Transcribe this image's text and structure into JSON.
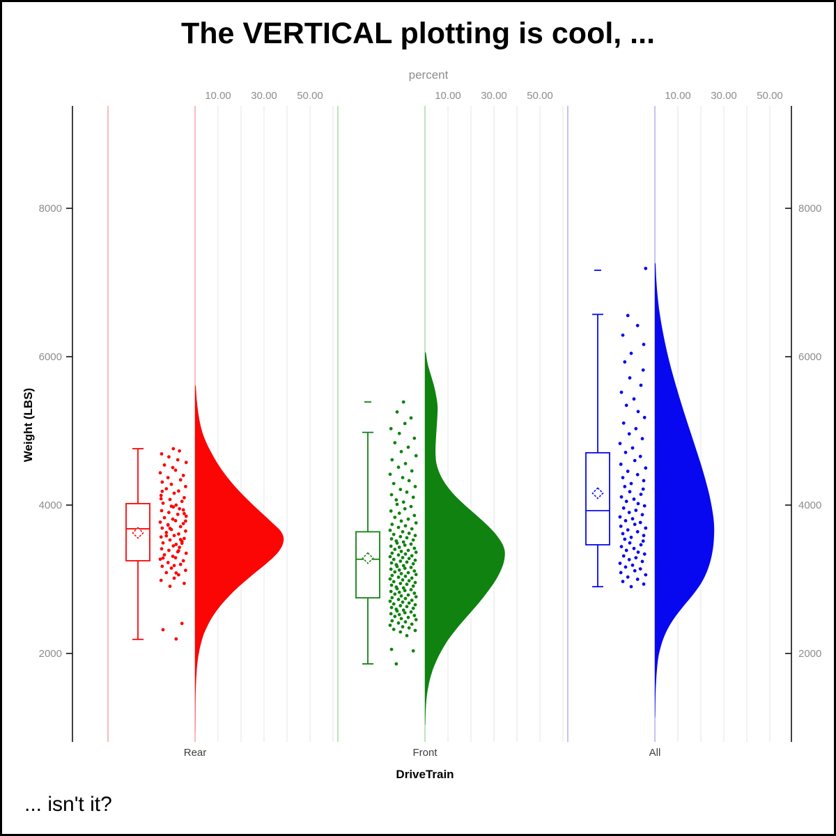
{
  "title": "The VERTICAL plotting is cool, ...",
  "footnote": "... isn't it?",
  "chart_data": {
    "type": "raincloud (half-violin + box-plot + jittered points), vertical",
    "title": "The VERTICAL plotting is cool, ...",
    "footnote": "... isn't it?",
    "x_axis": {
      "label": "DriveTrain",
      "categories": [
        "Rear",
        "Front",
        "All"
      ]
    },
    "y_axis": {
      "label": "Weight (LBS)",
      "ticks": [
        2000,
        4000,
        6000,
        8000
      ],
      "range": [
        800,
        9400
      ],
      "mirrored_right": true,
      "tick_color": "#8c8c8c"
    },
    "x2_axis": {
      "label": "percent",
      "tick_values": [
        10,
        30,
        50
      ],
      "tick_labels": [
        "10.00",
        "30.00",
        "50.00"
      ],
      "gridline_values": [
        10,
        20,
        30,
        40,
        50,
        60
      ],
      "per_category": true
    },
    "style": {
      "grid_color": "#efefef",
      "axis_color": "#000000",
      "category_label_color": "#3d3d3d",
      "background": "#ffffff"
    },
    "groups": [
      {
        "category": "Rear",
        "color": "#fb0505",
        "light_color": "#f5abab",
        "box": {
          "whisker_low": 2190,
          "q1": 3250,
          "median": 3680,
          "q3": 4020,
          "whisker_high": 4760,
          "mean": 3625
        },
        "outliers": [],
        "violin_profile_weight_pct": [
          [
            5600,
            0.3
          ],
          [
            5400,
            0.8
          ],
          [
            5200,
            1.6
          ],
          [
            5000,
            3.0
          ],
          [
            4850,
            4.8
          ],
          [
            4700,
            7.2
          ],
          [
            4550,
            10.0
          ],
          [
            4400,
            13.4
          ],
          [
            4250,
            17.4
          ],
          [
            4100,
            22.0
          ],
          [
            3950,
            27.0
          ],
          [
            3820,
            31.6
          ],
          [
            3720,
            35.0
          ],
          [
            3650,
            37.2
          ],
          [
            3560,
            38.5
          ],
          [
            3460,
            38.0
          ],
          [
            3360,
            36.0
          ],
          [
            3260,
            32.8
          ],
          [
            3160,
            29.0
          ],
          [
            3060,
            25.0
          ],
          [
            2960,
            21.2
          ],
          [
            2860,
            17.6
          ],
          [
            2760,
            14.4
          ],
          [
            2660,
            11.5
          ],
          [
            2560,
            9.0
          ],
          [
            2460,
            6.9
          ],
          [
            2360,
            5.2
          ],
          [
            2260,
            3.8
          ],
          [
            2160,
            2.8
          ],
          [
            2060,
            2.0
          ],
          [
            1940,
            1.3
          ],
          [
            1800,
            0.8
          ],
          [
            1650,
            0.5
          ],
          [
            1450,
            0.25
          ],
          [
            1200,
            0.12
          ],
          [
            950,
            0.06
          ]
        ],
        "jitter_cycle": [
          62,
          15,
          83,
          40,
          91,
          8,
          55,
          71,
          27,
          96,
          45,
          12,
          78,
          33,
          88,
          5,
          60,
          50,
          20,
          98,
          68,
          36,
          10,
          74,
          52
        ],
        "point_weights": [
          2195,
          2320,
          2405,
          2905,
          2945,
          2985,
          3015,
          3060,
          3090,
          3120,
          3150,
          3175,
          3200,
          3225,
          3250,
          3270,
          3290,
          3310,
          3330,
          3350,
          3370,
          3390,
          3410,
          3430,
          3450,
          3470,
          3490,
          3510,
          3530,
          3550,
          3570,
          3590,
          3610,
          3630,
          3650,
          3670,
          3690,
          3710,
          3730,
          3750,
          3770,
          3790,
          3810,
          3830,
          3850,
          3875,
          3900,
          3925,
          3950,
          3975,
          4000,
          4025,
          4050,
          4075,
          4100,
          4130,
          4160,
          4190,
          4220,
          4250,
          4280,
          4310,
          4340,
          4370,
          4400,
          4435,
          4470,
          4505,
          4540,
          4575,
          4610,
          4650,
          4690,
          4730,
          4760,
          3085,
          3285,
          3485,
          3685,
          3885,
          4085,
          3185,
          3385,
          3585,
          3785,
          3985,
          4185,
          3535,
          3735,
          3935
        ]
      },
      {
        "category": "Front",
        "color": "#0f820f",
        "light_color": "#b2d8b2",
        "box": {
          "whisker_low": 1860,
          "q1": 2750,
          "median": 3270,
          "q3": 3640,
          "whisker_high": 4980,
          "mean": 3285
        },
        "outliers": [
          5390
        ],
        "violin_profile_weight_pct": [
          [
            6050,
            0.4
          ],
          [
            5900,
            1.2
          ],
          [
            5750,
            2.6
          ],
          [
            5600,
            4.0
          ],
          [
            5450,
            5.0
          ],
          [
            5330,
            5.5
          ],
          [
            5200,
            5.4
          ],
          [
            5050,
            5.1
          ],
          [
            4900,
            4.8
          ],
          [
            4780,
            4.6
          ],
          [
            4680,
            4.6
          ],
          [
            4560,
            5.0
          ],
          [
            4440,
            6.2
          ],
          [
            4320,
            8.2
          ],
          [
            4200,
            11.0
          ],
          [
            4080,
            14.6
          ],
          [
            3960,
            18.8
          ],
          [
            3840,
            23.2
          ],
          [
            3720,
            27.4
          ],
          [
            3600,
            31.0
          ],
          [
            3480,
            33.6
          ],
          [
            3380,
            34.7
          ],
          [
            3280,
            34.6
          ],
          [
            3180,
            33.8
          ],
          [
            3080,
            32.4
          ],
          [
            2980,
            30.6
          ],
          [
            2880,
            28.4
          ],
          [
            2780,
            26.0
          ],
          [
            2680,
            23.4
          ],
          [
            2580,
            20.6
          ],
          [
            2480,
            17.8
          ],
          [
            2380,
            15.0
          ],
          [
            2280,
            12.4
          ],
          [
            2180,
            10.0
          ],
          [
            2080,
            8.0
          ],
          [
            1980,
            6.2
          ],
          [
            1880,
            4.7
          ],
          [
            1780,
            3.4
          ],
          [
            1680,
            2.4
          ],
          [
            1560,
            1.5
          ],
          [
            1420,
            0.8
          ],
          [
            1250,
            0.35
          ],
          [
            1050,
            0.15
          ]
        ],
        "jitter_cycle": [
          27,
          88,
          10,
          65,
          42,
          95,
          18,
          73,
          50,
          5,
          83,
          35,
          60,
          12,
          98,
          45,
          70,
          22,
          92,
          38,
          8,
          58,
          80,
          30,
          53
        ],
        "point_weights": [
          1860,
          2035,
          2055,
          2240,
          2290,
          2310,
          2325,
          2345,
          2360,
          2380,
          2395,
          2410,
          2425,
          2440,
          2455,
          2470,
          2485,
          2500,
          2512,
          2524,
          2536,
          2548,
          2560,
          2572,
          2584,
          2596,
          2608,
          2620,
          2632,
          2644,
          2656,
          2668,
          2680,
          2692,
          2704,
          2716,
          2728,
          2740,
          2752,
          2764,
          2776,
          2788,
          2800,
          2812,
          2824,
          2836,
          2848,
          2860,
          2872,
          2884,
          2896,
          2908,
          2920,
          2932,
          2944,
          2956,
          2968,
          2980,
          2992,
          3004,
          3016,
          3028,
          3040,
          3052,
          3064,
          3076,
          3088,
          3100,
          3112,
          3124,
          3136,
          3148,
          3160,
          3172,
          3184,
          3196,
          3208,
          3220,
          3232,
          3244,
          3256,
          3268,
          3280,
          3292,
          3304,
          3316,
          3328,
          3340,
          3352,
          3364,
          3376,
          3390,
          3404,
          3418,
          3432,
          3446,
          3460,
          3474,
          3488,
          3502,
          3516,
          3530,
          3545,
          3560,
          3575,
          3590,
          3605,
          3620,
          3640,
          3660,
          3680,
          3700,
          3720,
          3740,
          3760,
          3785,
          3810,
          3835,
          3860,
          3890,
          3920,
          3950,
          3980,
          4010,
          4040,
          4070,
          4105,
          4140,
          4175,
          4210,
          4250,
          4290,
          4330,
          4370,
          4415,
          4460,
          4510,
          4560,
          4610,
          4665,
          4720,
          4780,
          4840,
          4900,
          4965,
          5030,
          5100,
          5175,
          5255,
          5390
        ]
      },
      {
        "category": "All",
        "color": "#0808f0",
        "light_color": "#b6b6ec",
        "box": {
          "whisker_low": 2900,
          "q1": 3465,
          "median": 3925,
          "q3": 4705,
          "whisker_high": 6570,
          "mean": 4160
        },
        "outliers": [
          7165
        ],
        "violin_profile_weight_pct": [
          [
            7250,
            0.3
          ],
          [
            7050,
            0.6
          ],
          [
            6850,
            1.1
          ],
          [
            6650,
            1.8
          ],
          [
            6450,
            2.8
          ],
          [
            6250,
            4.0
          ],
          [
            6050,
            5.4
          ],
          [
            5850,
            7.0
          ],
          [
            5650,
            8.8
          ],
          [
            5450,
            10.7
          ],
          [
            5250,
            12.7
          ],
          [
            5050,
            14.8
          ],
          [
            4850,
            16.9
          ],
          [
            4650,
            19.0
          ],
          [
            4450,
            21.0
          ],
          [
            4250,
            22.8
          ],
          [
            4050,
            24.3
          ],
          [
            3850,
            25.4
          ],
          [
            3700,
            25.8
          ],
          [
            3550,
            25.7
          ],
          [
            3400,
            25.2
          ],
          [
            3250,
            24.2
          ],
          [
            3100,
            22.6
          ],
          [
            2950,
            20.2
          ],
          [
            2800,
            16.8
          ],
          [
            2650,
            12.8
          ],
          [
            2500,
            9.0
          ],
          [
            2350,
            5.9
          ],
          [
            2200,
            3.7
          ],
          [
            2050,
            2.2
          ],
          [
            1900,
            1.3
          ],
          [
            1700,
            0.7
          ],
          [
            1450,
            0.3
          ],
          [
            1150,
            0.12
          ]
        ],
        "jitter_cycle": [
          45,
          90,
          15,
          68,
          33,
          97,
          8,
          58,
          78,
          25,
          50,
          5,
          85,
          38,
          62,
          18,
          93,
          70,
          28,
          55,
          10,
          80,
          40,
          88,
          22
        ],
        "point_weights": [
          2900,
          2935,
          2970,
          3000,
          3030,
          3060,
          3090,
          3115,
          3140,
          3165,
          3190,
          3215,
          3240,
          3265,
          3290,
          3315,
          3340,
          3365,
          3390,
          3415,
          3440,
          3465,
          3490,
          3515,
          3540,
          3565,
          3590,
          3615,
          3640,
          3665,
          3690,
          3715,
          3740,
          3765,
          3790,
          3815,
          3840,
          3870,
          3900,
          3930,
          3960,
          3990,
          4020,
          4050,
          4080,
          4110,
          4145,
          4180,
          4215,
          4250,
          4290,
          4330,
          4370,
          4410,
          4455,
          4500,
          4550,
          4600,
          4655,
          4710,
          4770,
          4830,
          4895,
          4960,
          5030,
          5105,
          5180,
          5260,
          5345,
          5430,
          5520,
          5615,
          5715,
          5820,
          5930,
          6045,
          6165,
          6290,
          6420,
          6555,
          7190
        ]
      }
    ]
  }
}
